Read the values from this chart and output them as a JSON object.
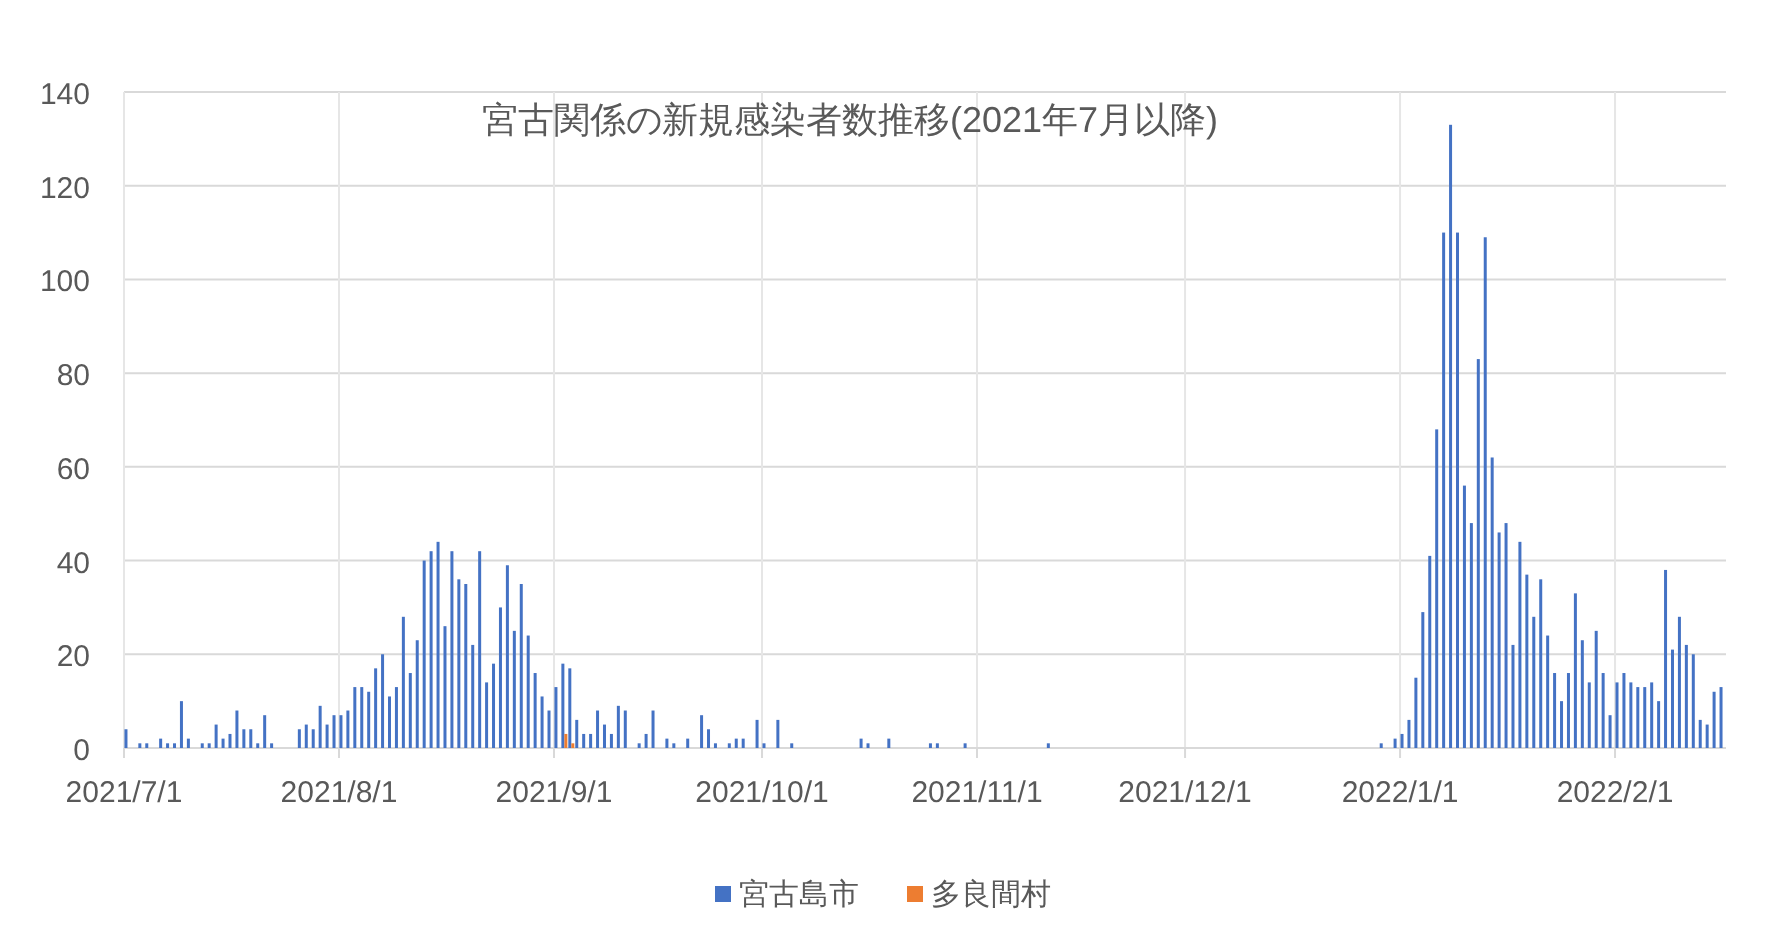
{
  "chart_data": {
    "type": "bar",
    "title": "宮古関係の新規感染者数推移(2021年7月以降)",
    "xlim": [
      "2021-07-01",
      "2022-02-17"
    ],
    "xticks": [
      {
        "value": "2021-07-01",
        "label": "2021/7/1"
      },
      {
        "value": "2021-08-01",
        "label": "2021/8/1"
      },
      {
        "value": "2021-09-01",
        "label": "2021/9/1"
      },
      {
        "value": "2021-10-01",
        "label": "2021/10/1"
      },
      {
        "value": "2021-11-01",
        "label": "2021/11/1"
      },
      {
        "value": "2021-12-01",
        "label": "2021/12/1"
      },
      {
        "value": "2022-01-01",
        "label": "2022/1/1"
      },
      {
        "value": "2022-02-01",
        "label": "2022/2/1"
      }
    ],
    "ylim": [
      0,
      140
    ],
    "yticks": [
      0,
      20,
      40,
      60,
      80,
      100,
      120,
      140
    ],
    "grid": true,
    "legend": "bottom",
    "series": [
      {
        "name": "宮古島市",
        "color": "#4472c4",
        "x": [
          "2021-07-01",
          "2021-07-03",
          "2021-07-04",
          "2021-07-06",
          "2021-07-07",
          "2021-07-08",
          "2021-07-09",
          "2021-07-10",
          "2021-07-12",
          "2021-07-13",
          "2021-07-14",
          "2021-07-15",
          "2021-07-16",
          "2021-07-17",
          "2021-07-18",
          "2021-07-19",
          "2021-07-20",
          "2021-07-21",
          "2021-07-22",
          "2021-07-26",
          "2021-07-27",
          "2021-07-28",
          "2021-07-29",
          "2021-07-30",
          "2021-07-31",
          "2021-08-01",
          "2021-08-02",
          "2021-08-03",
          "2021-08-04",
          "2021-08-05",
          "2021-08-06",
          "2021-08-07",
          "2021-08-08",
          "2021-08-09",
          "2021-08-10",
          "2021-08-11",
          "2021-08-12",
          "2021-08-13",
          "2021-08-14",
          "2021-08-15",
          "2021-08-16",
          "2021-08-17",
          "2021-08-18",
          "2021-08-19",
          "2021-08-20",
          "2021-08-21",
          "2021-08-22",
          "2021-08-23",
          "2021-08-24",
          "2021-08-25",
          "2021-08-26",
          "2021-08-27",
          "2021-08-28",
          "2021-08-29",
          "2021-08-30",
          "2021-08-31",
          "2021-09-01",
          "2021-09-02",
          "2021-09-03",
          "2021-09-04",
          "2021-09-05",
          "2021-09-06",
          "2021-09-07",
          "2021-09-08",
          "2021-09-09",
          "2021-09-10",
          "2021-09-11",
          "2021-09-13",
          "2021-09-14",
          "2021-09-15",
          "2021-09-17",
          "2021-09-18",
          "2021-09-20",
          "2021-09-22",
          "2021-09-23",
          "2021-09-24",
          "2021-09-26",
          "2021-09-27",
          "2021-09-28",
          "2021-09-30",
          "2021-10-01",
          "2021-10-03",
          "2021-10-05",
          "2021-10-15",
          "2021-10-16",
          "2021-10-19",
          "2021-10-25",
          "2021-10-26",
          "2021-10-30",
          "2021-11-11",
          "2021-12-29",
          "2021-12-31",
          "2022-01-01",
          "2022-01-02",
          "2022-01-03",
          "2022-01-04",
          "2022-01-05",
          "2022-01-06",
          "2022-01-07",
          "2022-01-08",
          "2022-01-09",
          "2022-01-10",
          "2022-01-11",
          "2022-01-12",
          "2022-01-13",
          "2022-01-14",
          "2022-01-15",
          "2022-01-16",
          "2022-01-17",
          "2022-01-18",
          "2022-01-19",
          "2022-01-20",
          "2022-01-21",
          "2022-01-22",
          "2022-01-23",
          "2022-01-24",
          "2022-01-25",
          "2022-01-26",
          "2022-01-27",
          "2022-01-28",
          "2022-01-29",
          "2022-01-30",
          "2022-01-31",
          "2022-02-01",
          "2022-02-02",
          "2022-02-03",
          "2022-02-04",
          "2022-02-05",
          "2022-02-06",
          "2022-02-07",
          "2022-02-08",
          "2022-02-09",
          "2022-02-10",
          "2022-02-11",
          "2022-02-12",
          "2022-02-13",
          "2022-02-14",
          "2022-02-15",
          "2022-02-16"
        ],
        "values": [
          4,
          1,
          1,
          2,
          1,
          1,
          10,
          2,
          1,
          1,
          5,
          2,
          3,
          8,
          4,
          4,
          1,
          7,
          1,
          4,
          5,
          4,
          9,
          5,
          7,
          7,
          8,
          13,
          13,
          12,
          17,
          20,
          11,
          13,
          28,
          16,
          23,
          40,
          42,
          44,
          26,
          42,
          36,
          35,
          22,
          42,
          14,
          18,
          30,
          39,
          25,
          35,
          24,
          16,
          11,
          8,
          13,
          18,
          17,
          6,
          3,
          3,
          8,
          5,
          3,
          9,
          8,
          1,
          3,
          8,
          2,
          1,
          2,
          7,
          4,
          1,
          1,
          2,
          2,
          6,
          1,
          6,
          1,
          2,
          1,
          2,
          1,
          1,
          1,
          1,
          1,
          2,
          3,
          6,
          15,
          29,
          41,
          68,
          110,
          133,
          110,
          56,
          48,
          83,
          109,
          62,
          46,
          48,
          22,
          44,
          37,
          28,
          36,
          24,
          16,
          10,
          16,
          33,
          23,
          14,
          25,
          16,
          7,
          14,
          16,
          14,
          13,
          13,
          14,
          10,
          38,
          21,
          28,
          22,
          20,
          6,
          5,
          12,
          13
        ]
      },
      {
        "name": "多良間村",
        "color": "#ed7d31",
        "x": [
          "2021-09-02",
          "2021-09-03"
        ],
        "values": [
          3,
          1
        ]
      }
    ]
  }
}
